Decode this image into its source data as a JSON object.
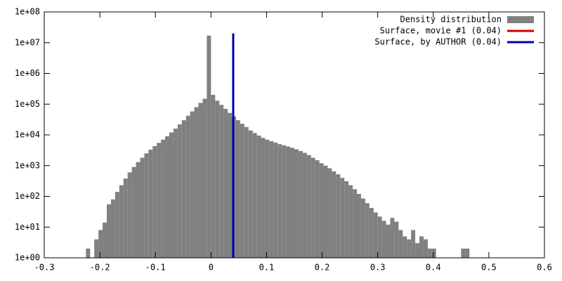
{
  "chart_data": {
    "type": "histogram",
    "bins": [
      -0.225,
      -0.2175,
      -0.21,
      -0.2025,
      -0.195,
      -0.1875,
      -0.18,
      -0.1725,
      -0.165,
      -0.1575,
      -0.15,
      -0.1425,
      -0.135,
      -0.1275,
      -0.12,
      -0.1125,
      -0.105,
      -0.0975,
      -0.09,
      -0.0825,
      -0.075,
      -0.0675,
      -0.06,
      -0.0525,
      -0.045,
      -0.0375,
      -0.03,
      -0.0225,
      -0.015,
      -0.0075,
      0,
      0.0075,
      0.015,
      0.0225,
      0.03,
      0.0375,
      0.045,
      0.0525,
      0.06,
      0.0675,
      0.075,
      0.0825,
      0.09,
      0.0975,
      0.105,
      0.1125,
      0.12,
      0.1275,
      0.135,
      0.1425,
      0.15,
      0.1575,
      0.165,
      0.1725,
      0.18,
      0.1875,
      0.195,
      0.2025,
      0.21,
      0.2175,
      0.225,
      0.2325,
      0.24,
      0.2475,
      0.255,
      0.2625,
      0.27,
      0.2775,
      0.285,
      0.2925,
      0.3,
      0.3075,
      0.315,
      0.3225,
      0.33,
      0.3375,
      0.345,
      0.3525,
      0.36,
      0.3675,
      0.375,
      0.3825,
      0.39,
      0.3975,
      0.405,
      0.4125,
      0.42,
      0.4275,
      0.435,
      0.4425,
      0.45,
      0.4575,
      0.465
    ],
    "series": [
      {
        "name": "Density distribution",
        "color": "#808080",
        "values": [
          2,
          0,
          4,
          8,
          14,
          55,
          80,
          140,
          230,
          380,
          600,
          900,
          1300,
          1800,
          2500,
          3300,
          4300,
          5500,
          7000,
          9000,
          12000,
          16000,
          22000,
          30000,
          42000,
          58000,
          80000,
          110000,
          150000,
          17000000,
          200000,
          130000,
          95000,
          70000,
          52000,
          40000,
          30000,
          23000,
          18000,
          14000,
          11500,
          9500,
          8000,
          7000,
          6200,
          5600,
          5000,
          4600,
          4200,
          3800,
          3400,
          3000,
          2600,
          2200,
          1800,
          1500,
          1200,
          1000,
          820,
          650,
          520,
          400,
          310,
          230,
          170,
          120,
          85,
          60,
          42,
          30,
          22,
          16,
          12,
          20,
          15,
          8,
          5,
          4,
          8,
          3,
          5,
          4,
          2,
          2,
          0,
          0,
          0,
          0,
          0,
          0,
          2,
          2
        ]
      },
      {
        "name": "Surface, movie #1 (0.04)",
        "color": "#cc0000",
        "x": [
          0.04,
          0.04
        ],
        "values": [
          1,
          20000000
        ]
      },
      {
        "name": "Surface, by AUTHOR (0.04)",
        "color": "#0000aa",
        "x": [
          0.04,
          0.04
        ],
        "values": [
          1,
          20000000
        ]
      }
    ],
    "xlim": [
      -0.3,
      0.6
    ],
    "xticks": [
      -0.3,
      -0.2,
      -0.1,
      0,
      0.1,
      0.2,
      0.3,
      0.4,
      0.5,
      0.6
    ],
    "ylim": [
      1,
      100000000
    ],
    "yticks": [
      {
        "value": 1,
        "label": "1e+00"
      },
      {
        "value": 10,
        "label": "1e+01"
      },
      {
        "value": 100,
        "label": "1e+02"
      },
      {
        "value": 1000,
        "label": "1e+03"
      },
      {
        "value": 10000,
        "label": "1e+04"
      },
      {
        "value": 100000,
        "label": "1e+05"
      },
      {
        "value": 1000000,
        "label": "1e+06"
      },
      {
        "value": 10000000,
        "label": "1e+07"
      },
      {
        "value": 100000000,
        "label": "1e+08"
      }
    ],
    "log_y": true,
    "legend": "top-right"
  }
}
